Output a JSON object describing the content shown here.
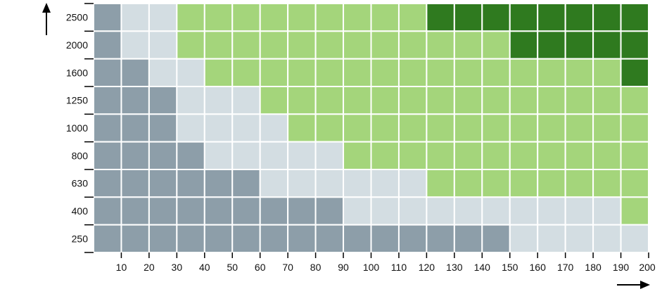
{
  "chart_data": {
    "type": "heatmap",
    "title": "",
    "xlabel": "",
    "ylabel": "",
    "x_ticks": [
      "10",
      "20",
      "30",
      "40",
      "50",
      "60",
      "70",
      "80",
      "90",
      "100",
      "110",
      "120",
      "130",
      "140",
      "150",
      "160",
      "170",
      "180",
      "190",
      "200"
    ],
    "y_ticks": [
      "250",
      "400",
      "630",
      "800",
      "1000",
      "1250",
      "1600",
      "2000",
      "2500"
    ],
    "x_columns": [
      10,
      20,
      30,
      40,
      50,
      60,
      70,
      80,
      90,
      100,
      110,
      120,
      130,
      140,
      150,
      160,
      170,
      180,
      190,
      200
    ],
    "legend": "none",
    "grid": true,
    "colors": {
      "0": "#8d9ea9",
      "1": "#d3dde2",
      "2": "#a4d57b",
      "3": "#2f7a1f"
    },
    "rows": [
      {
        "y": 2500,
        "cells": [
          0,
          1,
          1,
          2,
          2,
          2,
          2,
          2,
          2,
          2,
          2,
          2,
          3,
          3,
          3,
          3,
          3,
          3,
          3,
          3
        ]
      },
      {
        "y": 2000,
        "cells": [
          0,
          1,
          1,
          2,
          2,
          2,
          2,
          2,
          2,
          2,
          2,
          2,
          2,
          2,
          2,
          3,
          3,
          3,
          3,
          3
        ]
      },
      {
        "y": 1600,
        "cells": [
          0,
          0,
          1,
          1,
          2,
          2,
          2,
          2,
          2,
          2,
          2,
          2,
          2,
          2,
          2,
          2,
          2,
          2,
          2,
          3
        ]
      },
      {
        "y": 1250,
        "cells": [
          0,
          0,
          0,
          1,
          1,
          1,
          2,
          2,
          2,
          2,
          2,
          2,
          2,
          2,
          2,
          2,
          2,
          2,
          2,
          2
        ]
      },
      {
        "y": 1000,
        "cells": [
          0,
          0,
          0,
          1,
          1,
          1,
          1,
          2,
          2,
          2,
          2,
          2,
          2,
          2,
          2,
          2,
          2,
          2,
          2,
          2
        ]
      },
      {
        "y": 800,
        "cells": [
          0,
          0,
          0,
          0,
          1,
          1,
          1,
          1,
          1,
          2,
          2,
          2,
          2,
          2,
          2,
          2,
          2,
          2,
          2,
          2
        ]
      },
      {
        "y": 630,
        "cells": [
          0,
          0,
          0,
          0,
          0,
          0,
          1,
          1,
          1,
          1,
          1,
          1,
          2,
          2,
          2,
          2,
          2,
          2,
          2,
          2
        ]
      },
      {
        "y": 400,
        "cells": [
          0,
          0,
          0,
          0,
          0,
          0,
          0,
          0,
          0,
          1,
          1,
          1,
          1,
          1,
          1,
          1,
          1,
          1,
          1,
          2
        ]
      },
      {
        "y": 250,
        "cells": [
          0,
          0,
          0,
          0,
          0,
          0,
          0,
          0,
          0,
          0,
          0,
          0,
          0,
          0,
          0,
          1,
          1,
          1,
          1,
          1
        ]
      }
    ]
  }
}
